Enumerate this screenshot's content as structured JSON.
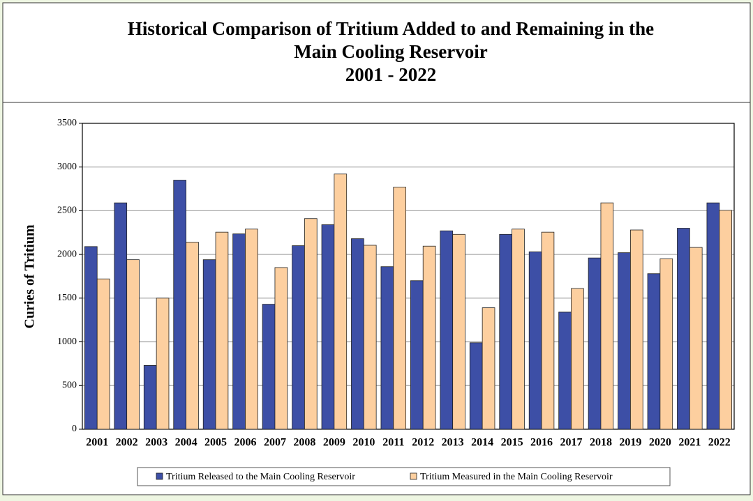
{
  "chart_data": {
    "type": "bar",
    "title": [
      "Historical Comparison of Tritium Added to and Remaining in the",
      "Main Cooling Reservoir",
      "2001 - 2022"
    ],
    "y_label": "Curies of Tritium",
    "categories": [
      "2001",
      "2002",
      "2003",
      "2004",
      "2005",
      "2006",
      "2007",
      "2008",
      "2009",
      "2010",
      "2011",
      "2012",
      "2013",
      "2014",
      "2015",
      "2016",
      "2017",
      "2018",
      "2019",
      "2020",
      "2021",
      "2022"
    ],
    "series": [
      {
        "name": "Tritium Released to the Main Cooling Reservoir",
        "color": "#3d4fa6",
        "values": [
          2090,
          2590,
          730,
          2850,
          1940,
          2235,
          1430,
          2100,
          2340,
          2180,
          1860,
          1700,
          2270,
          990,
          2230,
          2030,
          1340,
          1960,
          2020,
          1780,
          2300,
          2590
        ]
      },
      {
        "name": "Tritium Measured in the Main Cooling Reservoir",
        "color": "#fdcf9f",
        "values": [
          1720,
          1940,
          1500,
          2140,
          2255,
          2290,
          1850,
          2410,
          2920,
          2105,
          2770,
          2095,
          2230,
          1390,
          2290,
          2255,
          1610,
          2590,
          2280,
          1950,
          2080,
          2505
        ]
      }
    ],
    "ylim": [
      0,
      3500
    ],
    "yticks": [
      0,
      500,
      1000,
      1500,
      2000,
      2500,
      3000,
      3500
    ],
    "grid": true,
    "legend": "bottom"
  }
}
